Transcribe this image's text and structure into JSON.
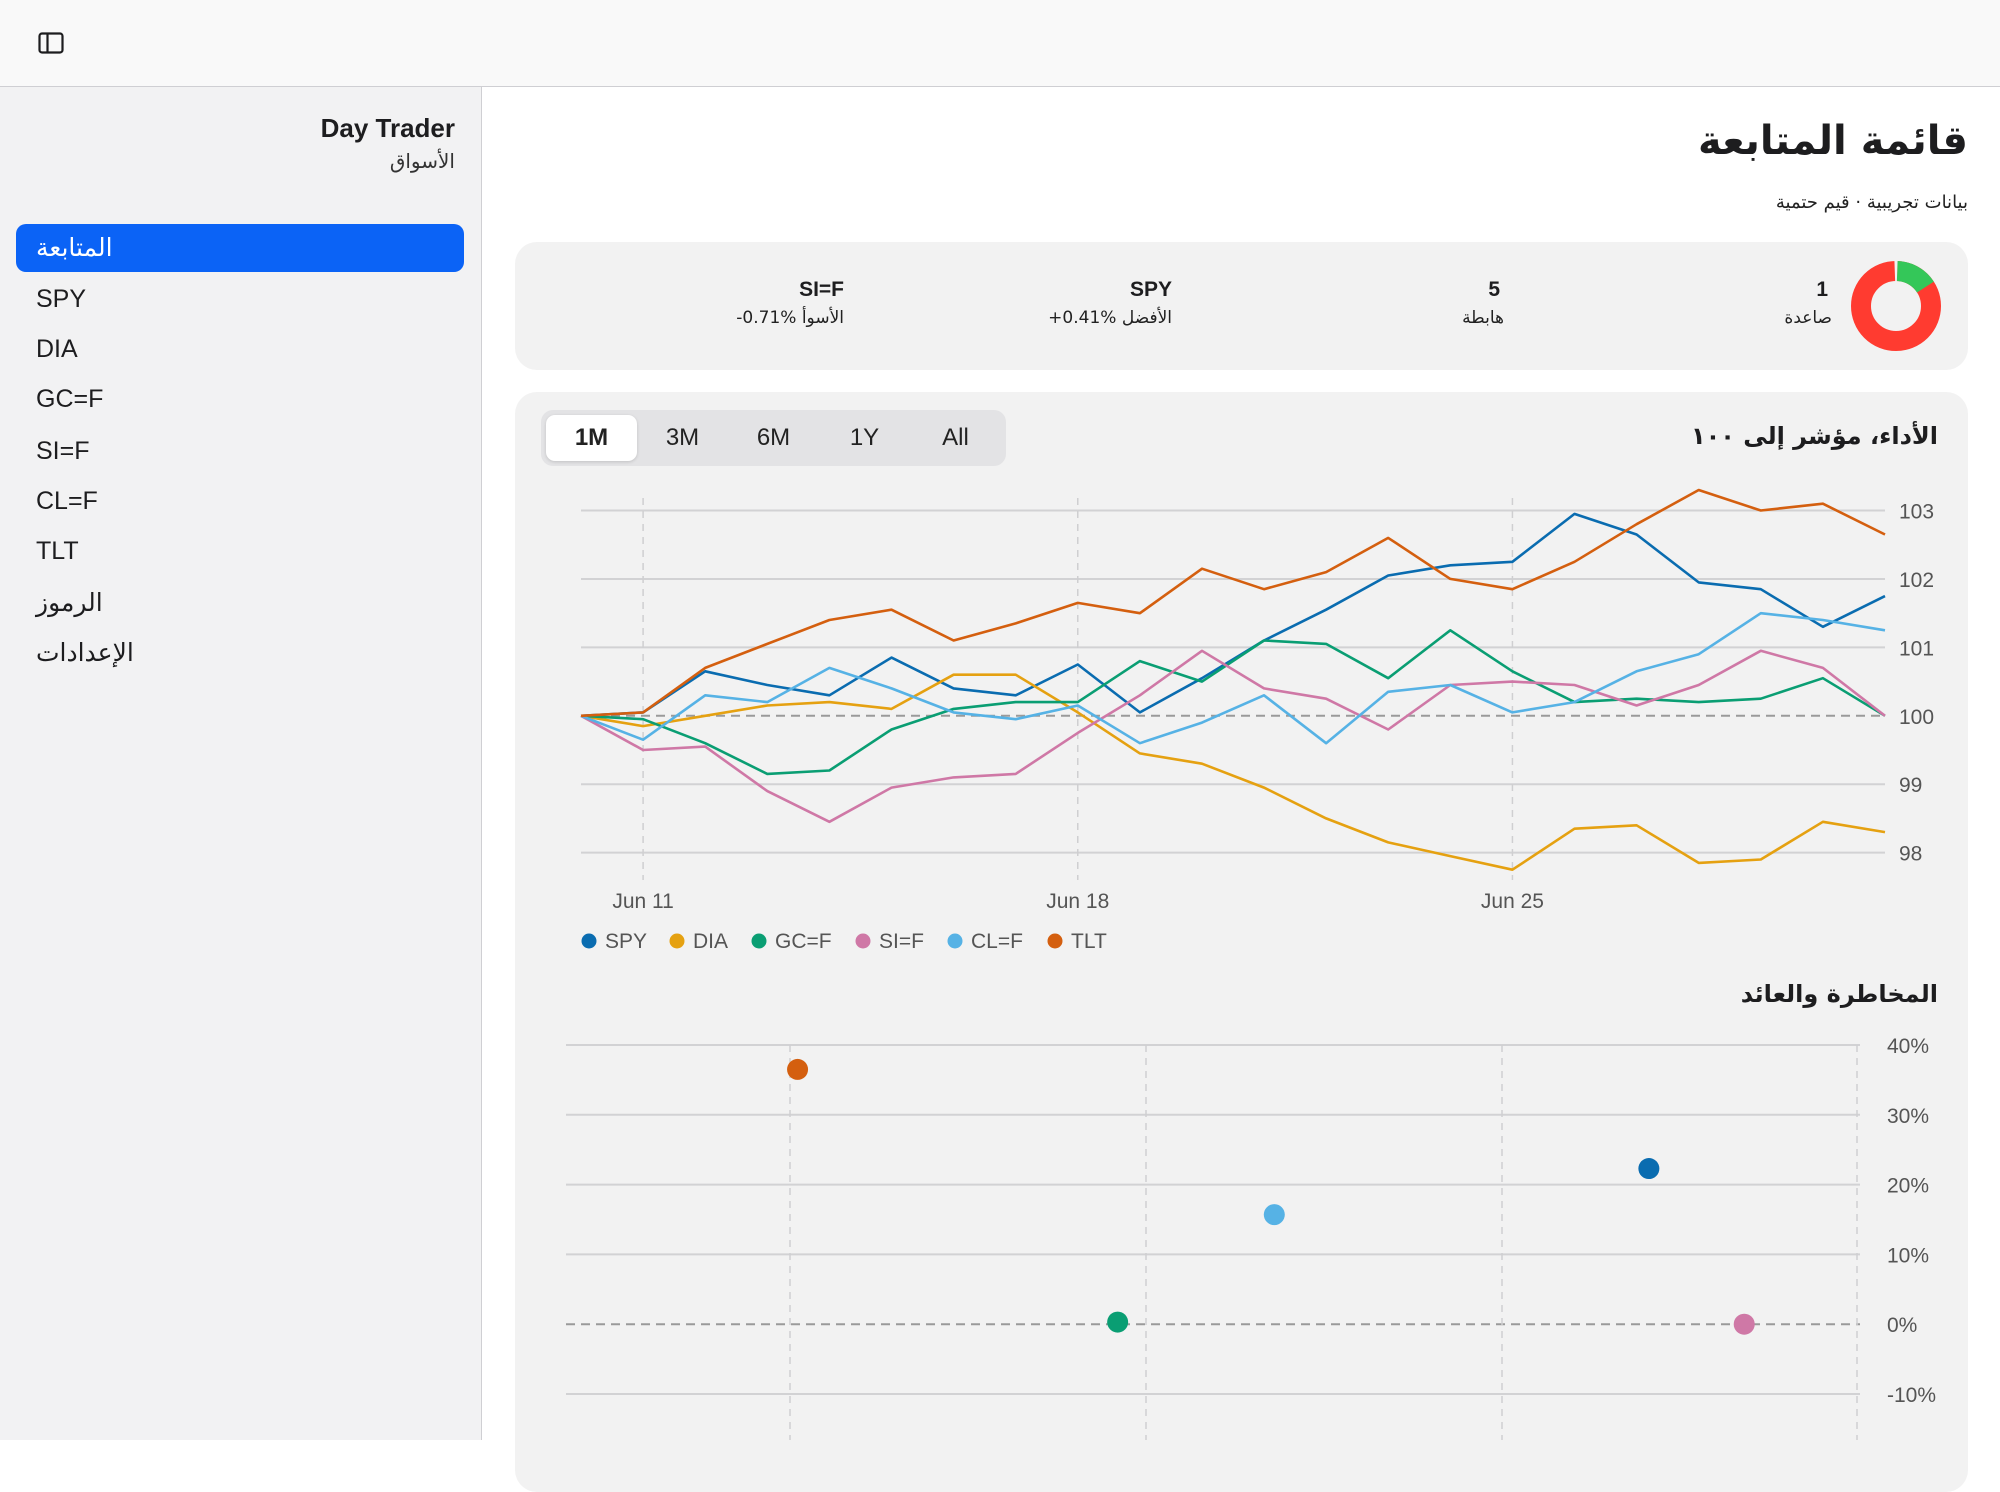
{
  "app": {
    "name": "Day Trader",
    "subtitle": "الأسواق"
  },
  "sidebar": {
    "items": [
      {
        "label": "المتابعة",
        "active": true
      },
      {
        "label": "SPY"
      },
      {
        "label": "DIA"
      },
      {
        "label": "GC=F"
      },
      {
        "label": "SI=F"
      },
      {
        "label": "CL=F"
      },
      {
        "label": "TLT"
      },
      {
        "label": "الرموز"
      },
      {
        "label": "الإعدادات"
      }
    ]
  },
  "page": {
    "title": "قائمة المتابعة",
    "subtitle": "بيانات تجريبية · قيم حتمية"
  },
  "summary": {
    "up": {
      "value": "1",
      "label": "صاعدة"
    },
    "down": {
      "value": "5",
      "label": "هابطة"
    },
    "best": {
      "symbol": "SPY",
      "label": "+0.41% الأفضل"
    },
    "worst": {
      "symbol": "SI=F",
      "label": "-0.71% الأسوأ"
    },
    "colors": {
      "up": "#34c759",
      "down": "#ff3b30"
    }
  },
  "ranges": {
    "items": [
      "1M",
      "3M",
      "6M",
      "1Y",
      "All"
    ],
    "selected": "1M"
  },
  "performance": {
    "title": "الأداء، مؤشر إلى ١٠٠"
  },
  "risk": {
    "title": "المخاطرة والعائد"
  },
  "chart_data": [
    {
      "type": "line",
      "title": "الأداء، مؤشر إلى ١٠٠",
      "x_ticks": [
        "Jun 11",
        "Jun 18",
        "Jun 25"
      ],
      "ylim": [
        97.6,
        103.3
      ],
      "y_ticks": [
        98,
        99,
        100,
        101,
        102,
        103
      ],
      "baseline": 100,
      "grid": true,
      "legend_position": "bottom-left",
      "series": [
        {
          "name": "SPY",
          "color": "#0a6cb0",
          "values": [
            100,
            100.05,
            100.65,
            100.45,
            100.3,
            100.85,
            100.4,
            100.3,
            100.75,
            100.05,
            100.55,
            101.1,
            101.55,
            102.05,
            102.2,
            102.25,
            102.95,
            102.65,
            101.95,
            101.85,
            101.3,
            101.75
          ]
        },
        {
          "name": "DIA",
          "color": "#e5a111",
          "values": [
            100,
            99.85,
            100,
            100.15,
            100.2,
            100.1,
            100.6,
            100.6,
            100.05,
            99.45,
            99.3,
            98.95,
            98.5,
            98.15,
            97.95,
            97.75,
            98.35,
            98.4,
            97.85,
            97.9,
            98.45,
            98.3
          ]
        },
        {
          "name": "GC=F",
          "color": "#0a9e73",
          "values": [
            100,
            99.95,
            99.6,
            99.15,
            99.2,
            99.8,
            100.1,
            100.2,
            100.2,
            100.8,
            100.5,
            101.1,
            101.05,
            100.55,
            101.25,
            100.65,
            100.2,
            100.25,
            100.2,
            100.25,
            100.55,
            100
          ]
        },
        {
          "name": "SI=F",
          "color": "#cf78a6",
          "values": [
            100,
            99.5,
            99.55,
            98.9,
            98.45,
            98.95,
            99.1,
            99.15,
            99.75,
            100.3,
            100.95,
            100.4,
            100.25,
            99.8,
            100.45,
            100.5,
            100.45,
            100.15,
            100.45,
            100.95,
            100.7,
            100
          ]
        },
        {
          "name": "CL=F",
          "color": "#56b2e5",
          "values": [
            100,
            99.65,
            100.3,
            100.2,
            100.7,
            100.4,
            100.05,
            99.95,
            100.15,
            99.6,
            99.9,
            100.3,
            99.6,
            100.35,
            100.45,
            100.05,
            100.2,
            100.65,
            100.9,
            101.5,
            101.4,
            101.25
          ]
        },
        {
          "name": "TLT",
          "color": "#d45f0f",
          "values": [
            100,
            100.05,
            100.7,
            101.05,
            101.4,
            101.55,
            101.1,
            101.35,
            101.65,
            101.5,
            102.15,
            101.85,
            102.1,
            102.6,
            102.0,
            101.85,
            102.25,
            102.8,
            103.3,
            103.0,
            103.1,
            102.65
          ]
        }
      ]
    },
    {
      "type": "scatter",
      "title": "المخاطرة والعائد",
      "ylim": [
        -15,
        40
      ],
      "y_ticks": [
        "40%",
        "30%",
        "20%",
        "10%",
        "0%",
        "-10%"
      ],
      "grid": true,
      "points": [
        {
          "name": "TLT",
          "color": "#d45f0f",
          "x": 2.2,
          "y": 36.5
        },
        {
          "name": "GC=F",
          "color": "#0a9e73",
          "x": 4.55,
          "y": 0.3
        },
        {
          "name": "CL=F",
          "color": "#56b2e5",
          "x": 5.7,
          "y": 15.7
        },
        {
          "name": "SPY",
          "color": "#0a6cb0",
          "x": 8.45,
          "y": 22.3
        },
        {
          "name": "SI=F",
          "color": "#cf78a6",
          "x": 9.15,
          "y": 0
        }
      ]
    }
  ]
}
